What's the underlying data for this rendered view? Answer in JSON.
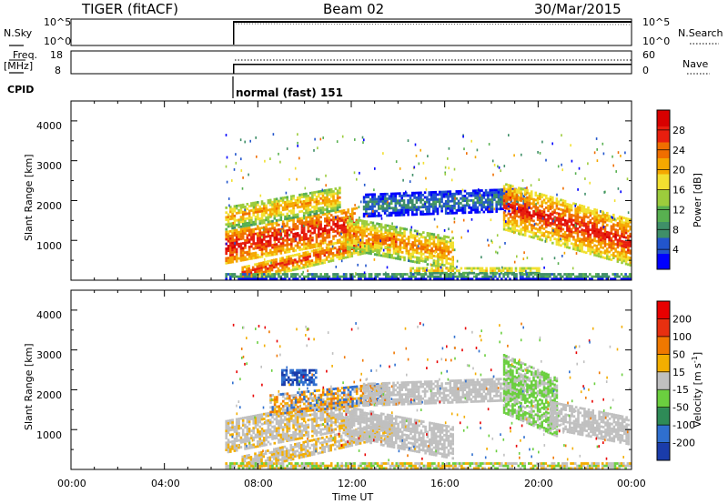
{
  "header": {
    "station": "TIGER (fitACF)",
    "beam": "Beam 02",
    "date": "30/Mar/2015"
  },
  "top_panels": {
    "nsky_label": "N.Sky",
    "nsky_ticks": [
      "10^5",
      "10^0"
    ],
    "nsearch_label": "N.Search",
    "nsearch_ticks": [
      "10^5",
      "10^0"
    ],
    "freq_label_line1": "Freq.",
    "freq_label_line2": "[MHz]",
    "freq_ticks": [
      "18",
      "8"
    ],
    "nave_label": "Nave",
    "nave_ticks": [
      "60",
      "0"
    ],
    "cpid_label": "CPID",
    "cpid_text": "normal (fast) 151"
  },
  "chart_data": [
    {
      "type": "heatmap",
      "title": "",
      "xlabel": "",
      "ylabel": "Slant Range [km]",
      "x_range_hours": [
        0,
        24
      ],
      "ylim": [
        0,
        4500
      ],
      "yticks": [
        "4000",
        "3000",
        "2000",
        "1000"
      ],
      "colorbar": {
        "label": "Power [dB]",
        "ticks": [
          "28",
          "24",
          "20",
          "16",
          "12",
          "8",
          "4"
        ],
        "colors": [
          "#0000ff",
          "#2255cc",
          "#3f8f68",
          "#58b050",
          "#9ccc3c",
          "#f2e030",
          "#f5a800",
          "#f06e00",
          "#e81e0e",
          "#d80000"
        ]
      },
      "data_start_hour": 6.5
    },
    {
      "type": "heatmap",
      "title": "",
      "xlabel": "Time UT",
      "ylabel": "Slant Range [km]",
      "x_range_hours": [
        0,
        24
      ],
      "xticks": [
        "00:00",
        "04:00",
        "08:00",
        "12:00",
        "16:00",
        "20:00",
        "00:00"
      ],
      "ylim": [
        0,
        4500
      ],
      "yticks": [
        "4000",
        "3000",
        "2000",
        "1000"
      ],
      "colorbar": {
        "label": "Velocity [m s",
        "label_sup": "-1",
        "label_end": "]",
        "ticks": [
          "200",
          "100",
          "50",
          "15",
          "-15",
          "-50",
          "-100",
          "-200"
        ],
        "colors": [
          "#1a3caa",
          "#2f6fcf",
          "#2e8b57",
          "#6bcf3f",
          "#c0c0c0",
          "#f3ae00",
          "#f07800",
          "#e83010",
          "#e80000"
        ]
      },
      "data_start_hour": 6.5
    }
  ]
}
